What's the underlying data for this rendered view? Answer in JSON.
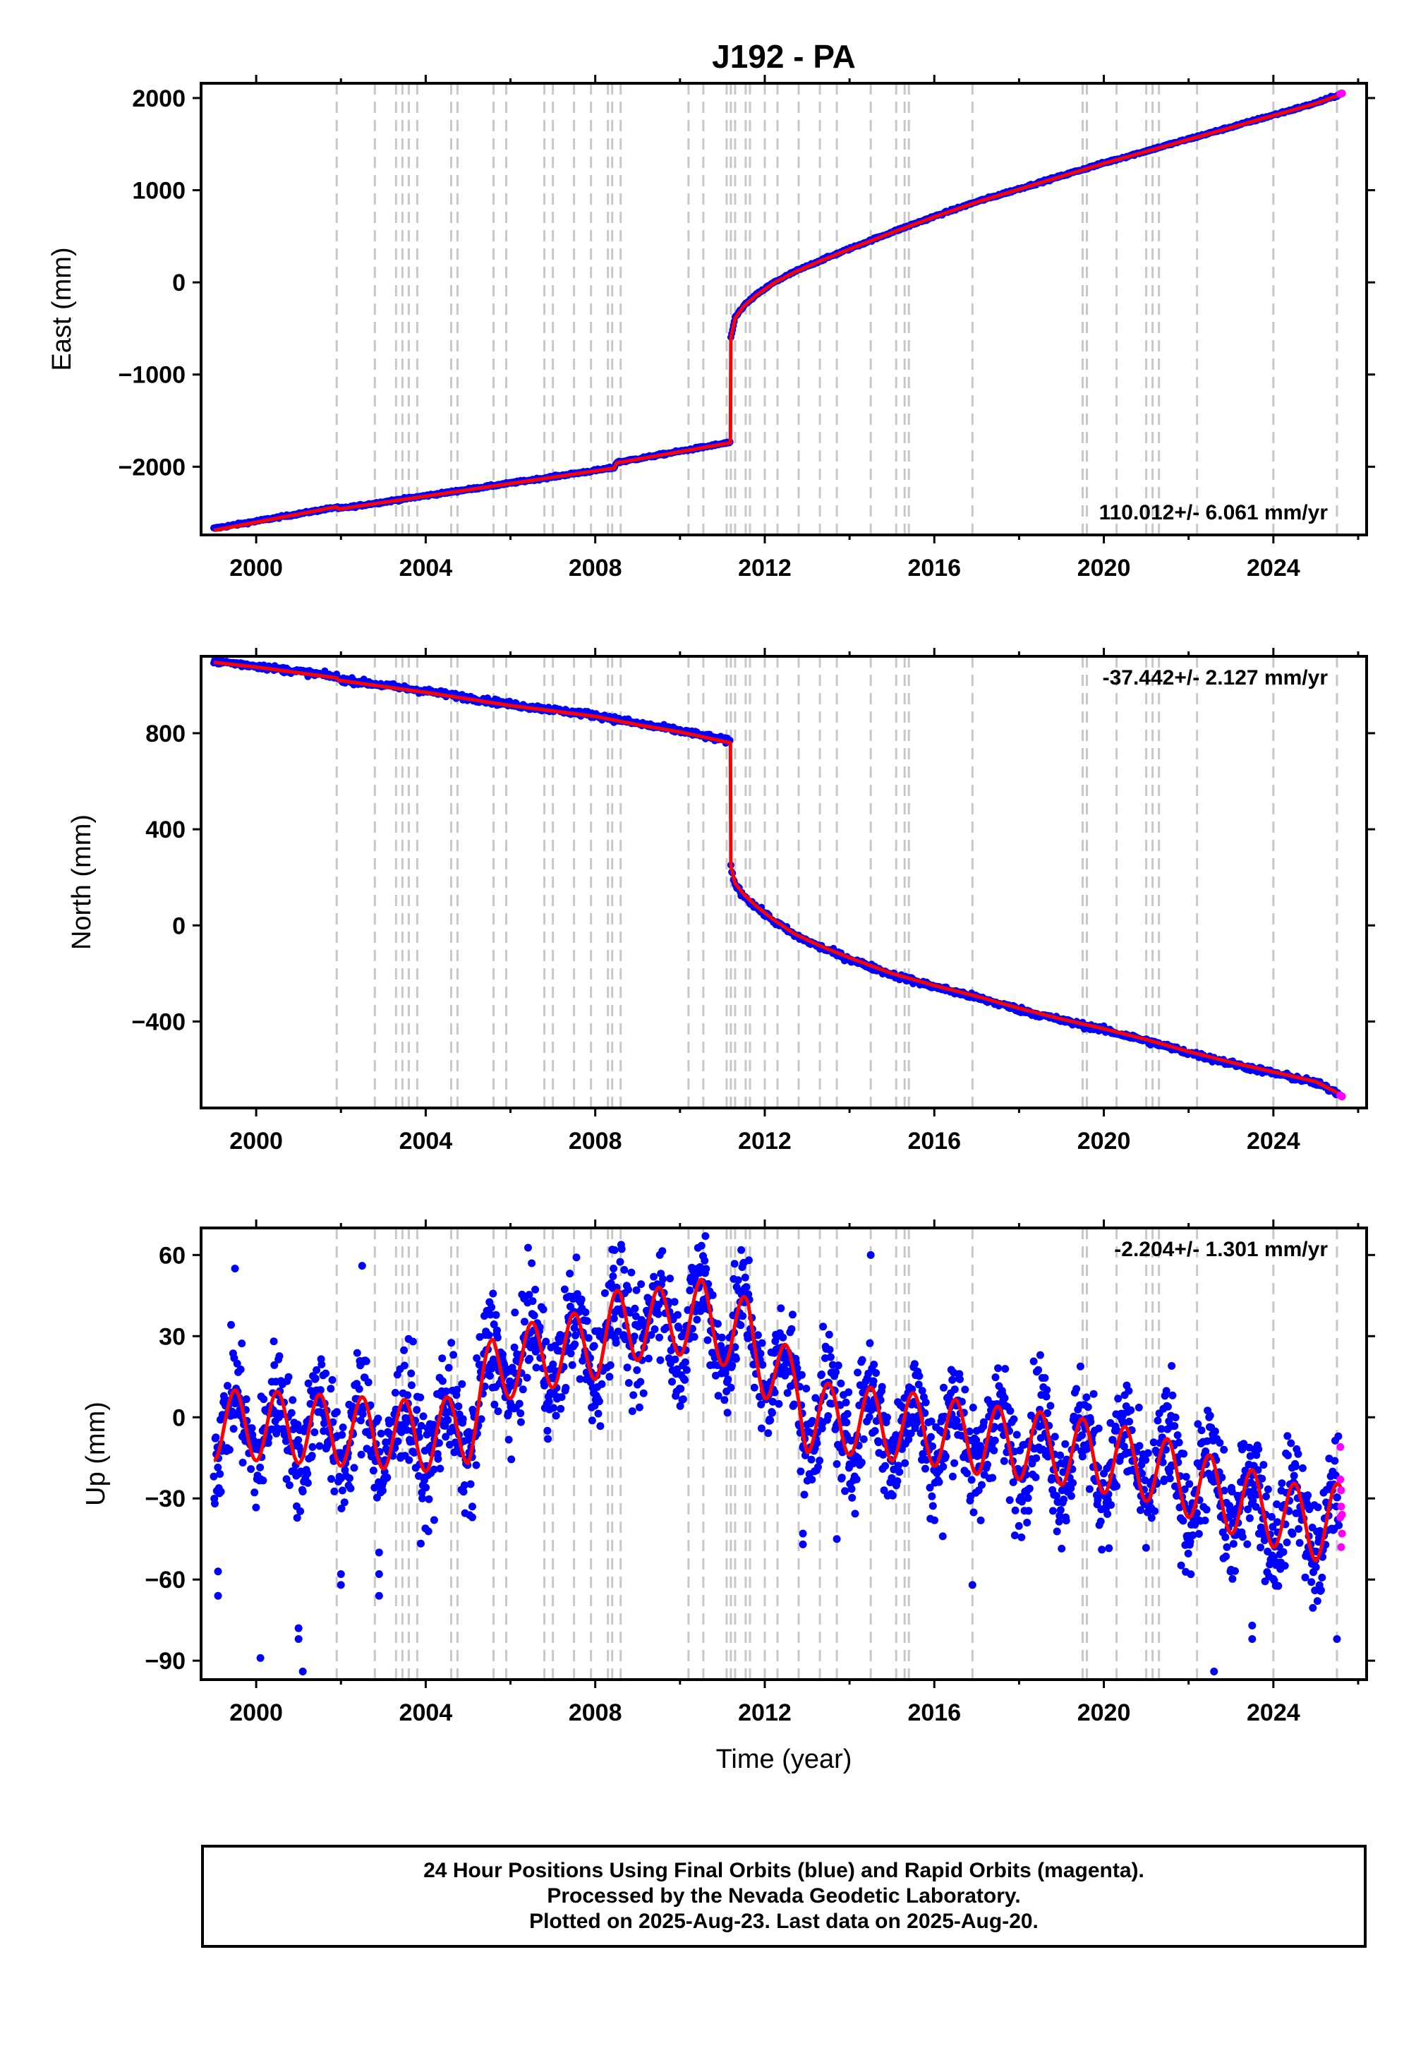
{
  "colors": {
    "final": "#0000ff",
    "rapid": "#ff00ff",
    "model": "#ff0000",
    "event": "#c8c8c8"
  },
  "chart_data": [
    {
      "type": "scatter",
      "title": "J192 - PA",
      "ylabel": "East (mm)",
      "xlabel": "",
      "xlim": [
        1998.7,
        2026.2
      ],
      "ylim": [
        -2740,
        2160
      ],
      "xticks": [
        "2000",
        "2004",
        "2008",
        "2012",
        "2016",
        "2020",
        "2024"
      ],
      "yticks": [
        "2000",
        "1000",
        "0",
        "−1000",
        "−2000"
      ],
      "rate_text": "110.012+/- 6.061 mm/yr",
      "event_lines": [
        2001.9,
        2002.8,
        2003.3,
        2003.45,
        2003.6,
        2003.8,
        2004.6,
        2004.75,
        2005.6,
        2005.9,
        2006.8,
        2007.0,
        2007.5,
        2007.9,
        2008.3,
        2008.4,
        2008.6,
        2010.2,
        2010.55,
        2011.1,
        2011.2,
        2011.3,
        2011.55,
        2011.65,
        2012.0,
        2012.3,
        2012.8,
        2013.3,
        2013.7,
        2014.5,
        2015.1,
        2015.3,
        2015.4,
        2016.9,
        2019.5,
        2019.6,
        2020.3,
        2021.0,
        2021.15,
        2021.3,
        2022.2,
        2024.0,
        2025.5
      ],
      "series": [
        {
          "kind": "model",
          "x": [
            1999.0,
            2001.9,
            2001.95,
            2008.45,
            2008.5,
            2011.19,
            2011.2,
            2011.3,
            2011.5,
            2011.8,
            2012.2,
            2012.7,
            2013.3,
            2014.0,
            2015.0,
            2016.0,
            2017.0,
            2018.0,
            2019.0,
            2020.0,
            2021.0,
            2022.0,
            2023.0,
            2024.0,
            2025.0,
            2025.6
          ],
          "y": [
            -2690,
            -2435,
            -2460,
            -2015,
            -1960,
            -1740,
            -600,
            -390,
            -260,
            -140,
            -10,
            110,
            230,
            360,
            540,
            710,
            870,
            1010,
            1150,
            1290,
            1420,
            1550,
            1680,
            1810,
            1940,
            2040
          ]
        },
        {
          "kind": "final",
          "x": [
            1999.0,
            2001.9,
            2001.95,
            2008.45,
            2008.5,
            2011.19,
            2011.2,
            2011.3,
            2011.5,
            2011.8,
            2012.2,
            2012.7,
            2013.3,
            2014.0,
            2015.0,
            2016.0,
            2017.0,
            2018.0,
            2019.0,
            2020.0,
            2021.0,
            2022.0,
            2023.0,
            2024.0,
            2025.0,
            2025.55
          ],
          "y": [
            -2670,
            -2440,
            -2455,
            -2010,
            -1955,
            -1735,
            -610,
            -380,
            -255,
            -135,
            -5,
            115,
            235,
            365,
            545,
            715,
            875,
            1015,
            1155,
            1295,
            1425,
            1555,
            1685,
            1815,
            1945,
            2035
          ]
        },
        {
          "kind": "rapid",
          "x": [
            2025.58,
            2025.6,
            2025.62
          ],
          "y": [
            2045,
            2048,
            2050
          ]
        }
      ]
    },
    {
      "type": "scatter",
      "title": "",
      "ylabel": "North (mm)",
      "xlabel": "",
      "xlim": [
        1998.7,
        2026.2
      ],
      "ylim": [
        -760,
        1120
      ],
      "xticks": [
        "2000",
        "2004",
        "2008",
        "2012",
        "2016",
        "2020",
        "2024"
      ],
      "yticks": [
        "800",
        "400",
        "0",
        "−400"
      ],
      "rate_text": "-37.442+/- 2.127 mm/yr",
      "event_lines": [
        2001.9,
        2002.8,
        2003.3,
        2003.45,
        2003.6,
        2003.8,
        2004.6,
        2004.75,
        2005.6,
        2005.9,
        2006.8,
        2007.0,
        2007.5,
        2007.9,
        2008.3,
        2008.4,
        2008.6,
        2010.2,
        2010.55,
        2011.1,
        2011.2,
        2011.3,
        2011.55,
        2011.65,
        2012.0,
        2012.3,
        2012.8,
        2013.3,
        2013.7,
        2014.5,
        2015.1,
        2015.3,
        2015.4,
        2016.9,
        2019.5,
        2019.6,
        2020.3,
        2021.0,
        2021.15,
        2021.3,
        2022.2,
        2024.0,
        2025.5
      ],
      "series": [
        {
          "kind": "model",
          "x": [
            1999.0,
            2000.0,
            2001.9,
            2001.95,
            2004.0,
            2006.0,
            2008.0,
            2009.0,
            2010.0,
            2011.19,
            2011.2,
            2011.3,
            2011.5,
            2011.8,
            2012.2,
            2012.7,
            2013.3,
            2014.0,
            2015.0,
            2016.0,
            2017.0,
            2018.0,
            2019.0,
            2020.0,
            2021.0,
            2022.0,
            2023.0,
            2024.0,
            2025.0,
            2025.6
          ],
          "y": [
            1095,
            1075,
            1030,
            1020,
            970,
            915,
            870,
            835,
            805,
            760,
            250,
            175,
            130,
            80,
            25,
            -35,
            -85,
            -135,
            -200,
            -250,
            -295,
            -345,
            -390,
            -430,
            -475,
            -525,
            -570,
            -610,
            -650,
            -705
          ]
        },
        {
          "kind": "final",
          "x": [
            1999.0,
            2000.0,
            2001.9,
            2001.95,
            2004.0,
            2006.0,
            2008.0,
            2009.0,
            2010.0,
            2011.19,
            2011.2,
            2011.3,
            2011.5,
            2011.8,
            2012.2,
            2012.7,
            2013.3,
            2014.0,
            2015.0,
            2016.0,
            2017.0,
            2018.0,
            2019.0,
            2020.0,
            2021.0,
            2022.0,
            2023.0,
            2024.0,
            2025.0,
            2025.55
          ],
          "y": [
            1100,
            1080,
            1035,
            1025,
            975,
            920,
            875,
            840,
            810,
            765,
            245,
            170,
            125,
            75,
            20,
            -40,
            -90,
            -140,
            -205,
            -255,
            -300,
            -350,
            -395,
            -435,
            -480,
            -530,
            -575,
            -615,
            -655,
            -700
          ]
        },
        {
          "kind": "rapid",
          "x": [
            2025.58,
            2025.6,
            2025.62
          ],
          "y": [
            -708,
            -710,
            -712
          ]
        }
      ]
    },
    {
      "type": "scatter",
      "title": "",
      "ylabel": "Up (mm)",
      "xlabel": "Time (year)",
      "xlim": [
        1998.7,
        2026.2
      ],
      "ylim": [
        -97,
        70
      ],
      "xticks": [
        "2000",
        "2004",
        "2008",
        "2012",
        "2016",
        "2020",
        "2024"
      ],
      "yticks": [
        "60",
        "30",
        "0",
        "−30",
        "−60",
        "−90"
      ],
      "rate_text": "-2.204+/- 1.301 mm/yr",
      "event_lines": [
        2001.9,
        2002.8,
        2003.3,
        2003.45,
        2003.6,
        2003.8,
        2004.6,
        2004.75,
        2005.6,
        2005.9,
        2006.8,
        2007.0,
        2007.5,
        2007.9,
        2008.3,
        2008.4,
        2008.6,
        2010.2,
        2010.55,
        2011.1,
        2011.2,
        2011.3,
        2011.55,
        2011.65,
        2012.0,
        2012.3,
        2012.8,
        2013.3,
        2013.7,
        2014.5,
        2015.1,
        2015.3,
        2015.4,
        2016.9,
        2019.5,
        2019.6,
        2020.3,
        2021.0,
        2021.15,
        2021.3,
        2022.2,
        2024.0,
        2025.5
      ],
      "series": [
        {
          "kind": "model",
          "x": [
            1999.0,
            2000.0,
            2001.0,
            2002.0,
            2003.0,
            2004.0,
            2005.0,
            2005.6,
            2006.0,
            2007.0,
            2008.0,
            2008.6,
            2009.0,
            2010.0,
            2010.5,
            2011.2,
            2011.6,
            2012.0,
            2012.8,
            2013.0,
            2014.0,
            2015.0,
            2016.0,
            2017.0,
            2018.0,
            2019.0,
            2020.0,
            2021.0,
            2022.0,
            2023.0,
            2024.0,
            2025.0,
            2025.6
          ],
          "y": [
            -3,
            -3,
            -4,
            -5,
            -6,
            -7,
            -4,
            18,
            20,
            24,
            27,
            35,
            34,
            36,
            38,
            30,
            32,
            20,
            10,
            0,
            -1,
            -3,
            -5,
            -8,
            -10,
            -12,
            -15,
            -18,
            -24,
            -30,
            -35,
            -40,
            -37
          ],
          "amplitude": 13
        },
        {
          "kind": "final",
          "x": [
            1999.0,
            2000.0,
            2001.0,
            2002.0,
            2003.0,
            2004.0,
            2005.0,
            2005.6,
            2006.0,
            2007.0,
            2008.0,
            2008.6,
            2009.0,
            2010.0,
            2010.5,
            2011.2,
            2011.6,
            2012.0,
            2012.8,
            2013.0,
            2014.0,
            2015.0,
            2016.0,
            2017.0,
            2018.0,
            2019.0,
            2020.0,
            2021.0,
            2022.0,
            2023.0,
            2024.0,
            2025.0,
            2025.55
          ],
          "y": [
            -3,
            -3,
            -4,
            -5,
            -6,
            -7,
            -4,
            18,
            20,
            24,
            27,
            35,
            34,
            36,
            38,
            30,
            32,
            20,
            10,
            0,
            -1,
            -3,
            -5,
            -8,
            -10,
            -12,
            -15,
            -18,
            -24,
            -30,
            -35,
            -40,
            -38
          ],
          "spread": 10,
          "outliers": [
            [
              1999.1,
              -57
            ],
            [
              1999.1,
              -66
            ],
            [
              1999.5,
              55
            ],
            [
              2000.1,
              -89
            ],
            [
              2001.0,
              -78
            ],
            [
              2001.0,
              -82
            ],
            [
              2001.1,
              -94
            ],
            [
              2002.0,
              -58
            ],
            [
              2002.0,
              -62
            ],
            [
              2002.5,
              56
            ],
            [
              2002.9,
              -50
            ],
            [
              2002.9,
              -58
            ],
            [
              2002.9,
              -66
            ],
            [
              2003.7,
              28
            ],
            [
              2004.2,
              -38
            ],
            [
              2005.1,
              -33
            ],
            [
              2005.1,
              -37
            ],
            [
              2008.4,
              62
            ],
            [
              2010.6,
              67
            ],
            [
              2012.9,
              -43
            ],
            [
              2012.9,
              -47
            ],
            [
              2013.7,
              -45
            ],
            [
              2014.5,
              60
            ],
            [
              2016.2,
              -44
            ],
            [
              2016.9,
              -62
            ],
            [
              2018.5,
              23
            ],
            [
              2021.6,
              19
            ],
            [
              2022.6,
              -94
            ],
            [
              2023.5,
              -77
            ],
            [
              2023.5,
              -82
            ],
            [
              2025.5,
              -82
            ]
          ]
        },
        {
          "kind": "rapid",
          "x": [
            2025.58,
            2025.58,
            2025.6,
            2025.6,
            2025.62,
            2025.62,
            2025.6,
            2025.58
          ],
          "y": [
            -11,
            -23,
            -27,
            -33,
            -36,
            -43,
            -48,
            -37
          ]
        }
      ]
    }
  ],
  "footer": {
    "line1": "24 Hour Positions Using Final Orbits (blue) and Rapid Orbits (magenta).",
    "line2": "Processed by the Nevada Geodetic Laboratory.",
    "line3": "Plotted on 2025-Aug-23. Last data on 2025-Aug-20."
  }
}
